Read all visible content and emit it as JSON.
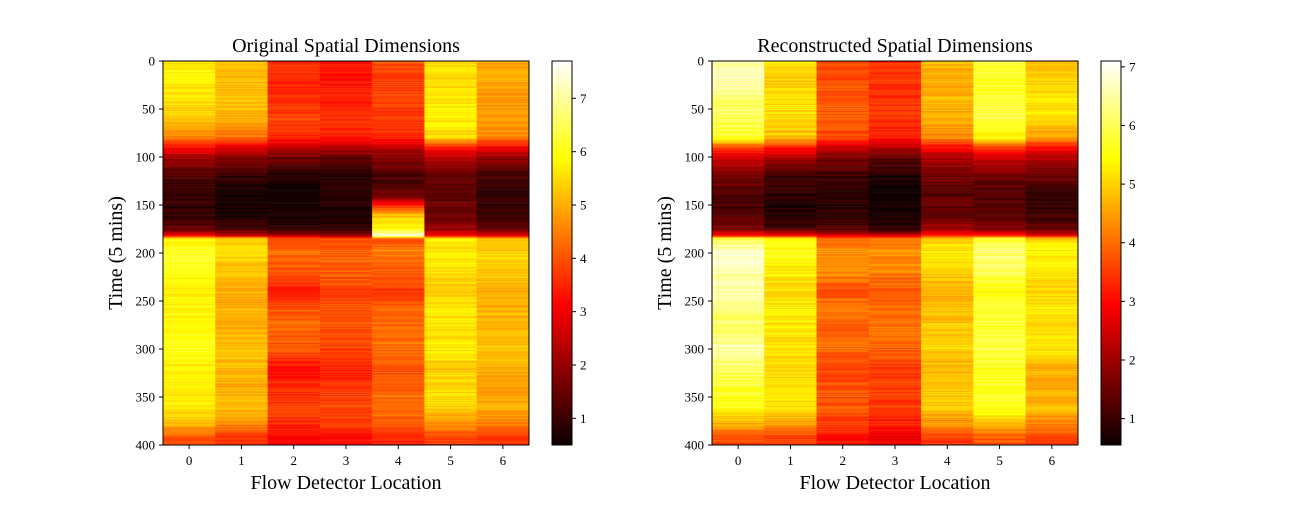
{
  "colormap": "hot",
  "chart_data": [
    {
      "type": "heatmap",
      "title": "Original Spatial Dimensions",
      "xlabel": "Flow Detector Location",
      "ylabel": "Time (5 mins)",
      "x_categories": [
        "0",
        "1",
        "2",
        "3",
        "4",
        "5",
        "6"
      ],
      "y_ticks": [
        "0",
        "50",
        "100",
        "150",
        "200",
        "250",
        "300",
        "350",
        "400"
      ],
      "ylim": [
        0,
        400
      ],
      "y_inverted": true,
      "colorbar": {
        "range": [
          0.5,
          7.7
        ],
        "ticks": [
          "1",
          "2",
          "3",
          "4",
          "5",
          "6",
          "7"
        ]
      },
      "profile_times": [
        0,
        20,
        40,
        60,
        80,
        90,
        100,
        120,
        140,
        160,
        175,
        182,
        185,
        190,
        200,
        220,
        240,
        260,
        280,
        300,
        320,
        340,
        360,
        380,
        390,
        400
      ],
      "profiles": [
        [
          5.6,
          5.8,
          5.5,
          5.4,
          4.6,
          3.2,
          2.2,
          1.2,
          0.9,
          0.9,
          1.4,
          3.0,
          5.9,
          5.8,
          6.2,
          6.0,
          5.7,
          5.8,
          5.9,
          6.0,
          5.7,
          5.6,
          5.7,
          5.0,
          4.2,
          3.8
        ],
        [
          5.2,
          5.1,
          5.2,
          5.0,
          4.3,
          2.8,
          1.9,
          0.9,
          0.7,
          0.7,
          1.1,
          2.6,
          5.4,
          5.3,
          5.5,
          5.2,
          4.9,
          5.1,
          5.0,
          5.2,
          5.1,
          5.0,
          5.2,
          4.5,
          3.8,
          3.5
        ],
        [
          3.7,
          3.5,
          3.6,
          3.8,
          3.5,
          2.4,
          1.6,
          0.8,
          0.6,
          0.6,
          0.9,
          2.2,
          4.0,
          4.0,
          4.3,
          4.0,
          3.3,
          4.1,
          4.2,
          4.0,
          3.2,
          3.6,
          3.8,
          3.6,
          3.2,
          3.2
        ],
        [
          3.3,
          3.4,
          3.5,
          3.6,
          3.4,
          2.3,
          1.5,
          0.8,
          0.7,
          0.7,
          0.9,
          2.1,
          4.0,
          3.9,
          4.2,
          4.1,
          3.8,
          4.1,
          4.0,
          3.9,
          3.4,
          3.7,
          3.9,
          3.7,
          3.2,
          3.2
        ],
        [
          4.1,
          3.7,
          3.9,
          3.7,
          3.6,
          2.4,
          1.9,
          1.1,
          1.5,
          5.2,
          5.8,
          7.6,
          3.8,
          4.2,
          4.4,
          4.1,
          3.7,
          4.2,
          4.3,
          4.3,
          4.0,
          4.2,
          4.4,
          4.0,
          3.6,
          3.3
        ],
        [
          5.6,
          5.4,
          5.6,
          5.8,
          5.4,
          3.5,
          2.4,
          1.5,
          1.4,
          1.5,
          2.0,
          3.2,
          5.8,
          5.6,
          5.7,
          5.5,
          5.3,
          5.6,
          5.6,
          5.6,
          5.4,
          5.5,
          5.5,
          4.6,
          4.0,
          3.6
        ],
        [
          5.0,
          4.9,
          4.7,
          4.8,
          4.6,
          3.0,
          2.0,
          1.1,
          0.9,
          1.0,
          1.4,
          2.8,
          5.3,
          5.2,
          5.5,
          5.3,
          4.9,
          5.1,
          5.1,
          5.2,
          5.0,
          4.9,
          5.0,
          4.4,
          3.8,
          3.5
        ]
      ]
    },
    {
      "type": "heatmap",
      "title": "Reconstructed Spatial Dimensions",
      "xlabel": "Flow Detector Location",
      "ylabel": "Time (5 mins)",
      "x_categories": [
        "0",
        "1",
        "2",
        "3",
        "4",
        "5",
        "6"
      ],
      "y_ticks": [
        "0",
        "50",
        "100",
        "150",
        "200",
        "250",
        "300",
        "350",
        "400"
      ],
      "ylim": [
        0,
        400
      ],
      "y_inverted": true,
      "colorbar": {
        "range": [
          0.55,
          7.1
        ],
        "ticks": [
          "1",
          "2",
          "3",
          "4",
          "5",
          "6",
          "7"
        ]
      },
      "profile_times": [
        0,
        20,
        40,
        60,
        80,
        90,
        100,
        120,
        140,
        160,
        175,
        182,
        185,
        190,
        200,
        220,
        240,
        260,
        280,
        300,
        320,
        340,
        360,
        380,
        390,
        400
      ],
      "profiles": [
        [
          6.6,
          6.5,
          6.2,
          6.1,
          5.6,
          3.6,
          2.6,
          1.6,
          1.2,
          1.2,
          1.6,
          3.3,
          5.9,
          6.2,
          6.8,
          6.6,
          6.5,
          6.2,
          6.0,
          6.6,
          6.1,
          5.7,
          5.5,
          4.6,
          3.8,
          3.6
        ],
        [
          5.3,
          5.0,
          5.1,
          5.2,
          4.8,
          3.2,
          2.1,
          1.1,
          0.8,
          0.8,
          1.2,
          3.0,
          5.5,
          5.5,
          5.5,
          5.3,
          5.1,
          5.3,
          5.2,
          5.2,
          5.0,
          5.2,
          5.2,
          4.4,
          3.7,
          3.4
        ],
        [
          3.6,
          3.7,
          3.8,
          3.9,
          3.6,
          2.5,
          1.7,
          1.0,
          0.9,
          0.9,
          1.2,
          2.6,
          4.0,
          4.0,
          4.4,
          4.3,
          3.6,
          4.2,
          3.8,
          4.0,
          3.5,
          3.7,
          3.8,
          3.5,
          3.1,
          3.0
        ],
        [
          3.3,
          3.5,
          3.4,
          3.5,
          3.2,
          2.2,
          1.4,
          0.7,
          0.6,
          0.6,
          0.9,
          2.4,
          4.1,
          4.2,
          4.3,
          4.2,
          3.8,
          4.0,
          4.1,
          3.9,
          3.5,
          3.6,
          3.5,
          3.2,
          2.8,
          2.8
        ],
        [
          4.8,
          4.6,
          4.7,
          4.6,
          4.3,
          3.0,
          2.2,
          1.5,
          1.3,
          1.4,
          2.0,
          3.3,
          5.0,
          5.1,
          5.2,
          5.0,
          4.6,
          4.9,
          4.9,
          5.0,
          4.7,
          4.9,
          4.9,
          4.3,
          3.7,
          3.5
        ],
        [
          5.9,
          5.7,
          5.8,
          5.9,
          5.4,
          3.6,
          2.5,
          1.6,
          1.2,
          1.3,
          1.7,
          3.2,
          5.8,
          5.9,
          6.2,
          6.0,
          5.5,
          5.8,
          5.7,
          5.9,
          5.6,
          5.7,
          5.6,
          4.8,
          4.0,
          3.6
        ],
        [
          4.8,
          4.9,
          5.2,
          5.1,
          4.5,
          3.0,
          2.2,
          1.4,
          1.0,
          1.1,
          1.4,
          2.9,
          5.0,
          5.2,
          5.4,
          5.3,
          5.0,
          5.2,
          5.0,
          5.2,
          4.7,
          4.6,
          4.8,
          4.2,
          3.7,
          3.4
        ]
      ]
    }
  ]
}
